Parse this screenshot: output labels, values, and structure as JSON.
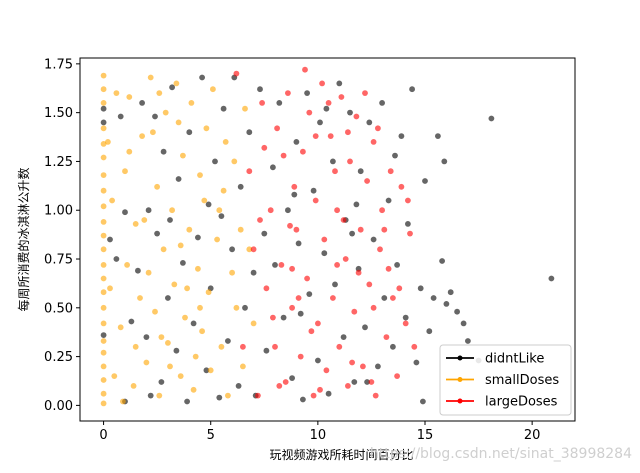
{
  "chart_data": {
    "type": "scatter",
    "title": "",
    "xlabel": "玩视频游戏所耗时间百分比",
    "ylabel": "每周所消费的冰淇淋公升数",
    "xlim": [
      -1.1,
      22.0
    ],
    "ylim": [
      -0.08,
      1.78
    ],
    "x_ticks": [
      0,
      5,
      10,
      15,
      20
    ],
    "y_ticks": [
      0.0,
      0.25,
      0.5,
      0.75,
      1.0,
      1.25,
      1.5,
      1.75
    ],
    "x_tick_labels": [
      "0",
      "5",
      "10",
      "15",
      "20"
    ],
    "y_tick_labels": [
      "0.00",
      "0.25",
      "0.50",
      "0.75",
      "1.00",
      "1.25",
      "1.50",
      "1.75"
    ],
    "grid": false,
    "legend_position": "bottom-right",
    "series": [
      {
        "name": "didntLike",
        "color": "#000000",
        "points": [
          [
            0.0,
            1.52
          ],
          [
            0.0,
            1.45
          ],
          [
            0.0,
            0.36
          ],
          [
            0.3,
            0.85
          ],
          [
            0.6,
            0.75
          ],
          [
            0.8,
            1.48
          ],
          [
            1.0,
            0.99
          ],
          [
            1.0,
            0.02
          ],
          [
            1.3,
            0.43
          ],
          [
            1.6,
            0.69
          ],
          [
            1.8,
            1.55
          ],
          [
            2.0,
            0.35
          ],
          [
            2.1,
            1.0
          ],
          [
            2.2,
            0.05
          ],
          [
            2.4,
            1.48
          ],
          [
            2.5,
            0.88
          ],
          [
            2.7,
            0.12
          ],
          [
            2.8,
            1.3
          ],
          [
            3.0,
            0.55
          ],
          [
            3.1,
            0.95
          ],
          [
            3.2,
            1.63
          ],
          [
            3.4,
            0.28
          ],
          [
            3.5,
            1.16
          ],
          [
            3.7,
            0.73
          ],
          [
            3.9,
            0.02
          ],
          [
            4.0,
            1.4
          ],
          [
            4.2,
            0.42
          ],
          [
            4.4,
            0.86
          ],
          [
            4.6,
            1.68
          ],
          [
            4.8,
            0.18
          ],
          [
            4.9,
            1.03
          ],
          [
            5.0,
            0.6
          ],
          [
            5.2,
            1.25
          ],
          [
            5.4,
            0.04
          ],
          [
            5.5,
            0.97
          ],
          [
            5.6,
            1.52
          ],
          [
            5.8,
            0.33
          ],
          [
            6.0,
            0.8
          ],
          [
            6.1,
            1.68
          ],
          [
            6.3,
            0.1
          ],
          [
            6.4,
            1.12
          ],
          [
            6.6,
            0.5
          ],
          [
            6.8,
            1.4
          ],
          [
            7.0,
            0.68
          ],
          [
            7.1,
            0.05
          ],
          [
            7.3,
            1.62
          ],
          [
            7.5,
            0.88
          ],
          [
            7.6,
            0.28
          ],
          [
            7.9,
            1.22
          ],
          [
            8.0,
            0.72
          ],
          [
            8.2,
            1.55
          ],
          [
            8.4,
            0.45
          ],
          [
            8.6,
            1.0
          ],
          [
            8.8,
            0.14
          ],
          [
            9.0,
            1.35
          ],
          [
            9.1,
            0.83
          ],
          [
            9.3,
            0.03
          ],
          [
            9.5,
            1.6
          ],
          [
            9.6,
            0.57
          ],
          [
            9.8,
            1.1
          ],
          [
            10.0,
            0.23
          ],
          [
            10.1,
            1.45
          ],
          [
            10.3,
            0.78
          ],
          [
            10.5,
            0.06
          ],
          [
            10.7,
            1.25
          ],
          [
            10.8,
            0.62
          ],
          [
            11.0,
            1.65
          ],
          [
            11.2,
            0.35
          ],
          [
            11.3,
            0.95
          ],
          [
            11.5,
            1.5
          ],
          [
            11.7,
            0.12
          ],
          [
            11.9,
            0.7
          ],
          [
            12.0,
            1.2
          ],
          [
            12.2,
            0.4
          ],
          [
            12.4,
            1.45
          ],
          [
            12.6,
            0.85
          ],
          [
            12.8,
            0.2
          ],
          [
            13.0,
            1.55
          ],
          [
            13.1,
            0.55
          ],
          [
            13.3,
            1.05
          ],
          [
            13.5,
            0.3
          ],
          [
            13.7,
            0.72
          ],
          [
            13.9,
            1.38
          ],
          [
            14.1,
            0.45
          ],
          [
            14.2,
            0.93
          ],
          [
            14.4,
            1.62
          ],
          [
            14.6,
            0.22
          ],
          [
            14.8,
            0.6
          ],
          [
            15.0,
            1.15
          ],
          [
            15.2,
            0.38
          ],
          [
            15.4,
            0.55
          ],
          [
            15.6,
            1.38
          ],
          [
            15.8,
            0.74
          ],
          [
            15.9,
            1.25
          ],
          [
            16.0,
            0.52
          ],
          [
            16.2,
            0.58
          ],
          [
            16.5,
            0.48
          ],
          [
            16.8,
            0.42
          ],
          [
            17.0,
            0.33
          ],
          [
            17.5,
            0.23
          ],
          [
            18.1,
            1.47
          ],
          [
            20.9,
            0.65
          ],
          [
            11.8,
            1.03
          ],
          [
            12.3,
            0.12
          ],
          [
            9.2,
            0.47
          ],
          [
            10.4,
            1.52
          ],
          [
            11.6,
            0.88
          ],
          [
            8.9,
            1.08
          ],
          [
            13.6,
            1.28
          ],
          [
            14.9,
            0.02
          ]
        ]
      },
      {
        "name": "smallDoses",
        "color": "#FFA500",
        "points": [
          [
            0.0,
            1.69
          ],
          [
            0.0,
            1.62
          ],
          [
            0.0,
            1.55
          ],
          [
            0.0,
            1.42
          ],
          [
            0.0,
            1.34
          ],
          [
            0.0,
            1.27
          ],
          [
            0.0,
            1.18
          ],
          [
            0.0,
            1.1
          ],
          [
            0.0,
            1.02
          ],
          [
            0.0,
            0.94
          ],
          [
            0.0,
            0.87
          ],
          [
            0.0,
            0.8
          ],
          [
            0.0,
            0.72
          ],
          [
            0.0,
            0.65
          ],
          [
            0.0,
            0.58
          ],
          [
            0.0,
            0.5
          ],
          [
            0.0,
            0.42
          ],
          [
            0.0,
            0.33
          ],
          [
            0.0,
            0.27
          ],
          [
            0.0,
            0.2
          ],
          [
            0.0,
            0.13
          ],
          [
            0.0,
            0.06
          ],
          [
            0.0,
            0.01
          ],
          [
            0.2,
            1.35
          ],
          [
            0.3,
            0.6
          ],
          [
            0.4,
            1.05
          ],
          [
            0.5,
            0.15
          ],
          [
            0.6,
            1.6
          ],
          [
            0.8,
            0.4
          ],
          [
            1.0,
            1.2
          ],
          [
            1.1,
            0.72
          ],
          [
            1.2,
            1.58
          ],
          [
            1.4,
            0.1
          ],
          [
            1.5,
            0.93
          ],
          [
            1.7,
            0.55
          ],
          [
            1.8,
            1.38
          ],
          [
            2.0,
            0.22
          ],
          [
            2.1,
            0.68
          ],
          [
            2.2,
            1.68
          ],
          [
            2.4,
            0.48
          ],
          [
            2.5,
            1.12
          ],
          [
            2.6,
            0.05
          ],
          [
            2.8,
            0.8
          ],
          [
            2.9,
            1.5
          ],
          [
            3.0,
            0.32
          ],
          [
            3.2,
            1.0
          ],
          [
            3.3,
            0.62
          ],
          [
            3.4,
            1.65
          ],
          [
            3.6,
            0.15
          ],
          [
            3.7,
            1.28
          ],
          [
            3.8,
            0.45
          ],
          [
            4.0,
            0.9
          ],
          [
            4.1,
            1.55
          ],
          [
            4.2,
            0.08
          ],
          [
            4.4,
            0.7
          ],
          [
            4.5,
            1.18
          ],
          [
            4.6,
            0.38
          ],
          [
            4.8,
            1.42
          ],
          [
            4.9,
            0.58
          ],
          [
            5.0,
            0.18
          ],
          [
            5.1,
            1.62
          ],
          [
            5.3,
            0.85
          ],
          [
            5.4,
            1.0
          ],
          [
            5.5,
            0.3
          ],
          [
            5.7,
            1.35
          ],
          [
            5.8,
            0.05
          ],
          [
            6.0,
            0.68
          ],
          [
            6.1,
            1.25
          ],
          [
            6.2,
            0.5
          ],
          [
            6.4,
            0.9
          ],
          [
            6.5,
            0.2
          ],
          [
            6.6,
            1.52
          ],
          [
            6.8,
            0.8
          ],
          [
            7.0,
            0.42
          ],
          [
            1.5,
            0.3
          ],
          [
            2.3,
            1.4
          ],
          [
            3.1,
            0.2
          ],
          [
            3.9,
            0.6
          ],
          [
            4.7,
            1.05
          ],
          [
            1.9,
            0.95
          ],
          [
            2.7,
            0.35
          ],
          [
            3.5,
            1.45
          ],
          [
            4.3,
            0.25
          ],
          [
            0.9,
            0.02
          ],
          [
            1.2,
            1.3
          ],
          [
            2.6,
            1.6
          ],
          [
            3.6,
            0.82
          ],
          [
            4.5,
            0.5
          ],
          [
            5.6,
            1.1
          ]
        ]
      },
      {
        "name": "largeDoses",
        "color": "#FF0000",
        "points": [
          [
            6.2,
            1.7
          ],
          [
            6.5,
            0.3
          ],
          [
            6.8,
            1.2
          ],
          [
            7.0,
            0.8
          ],
          [
            7.2,
            0.05
          ],
          [
            7.4,
            1.55
          ],
          [
            7.6,
            0.6
          ],
          [
            7.8,
            1.0
          ],
          [
            8.0,
            0.3
          ],
          [
            8.1,
            1.42
          ],
          [
            8.3,
            0.72
          ],
          [
            8.5,
            0.12
          ],
          [
            8.6,
            1.6
          ],
          [
            8.8,
            0.5
          ],
          [
            8.9,
            1.12
          ],
          [
            9.0,
            0.9
          ],
          [
            9.2,
            0.25
          ],
          [
            9.3,
            1.3
          ],
          [
            9.5,
            0.65
          ],
          [
            9.6,
            1.5
          ],
          [
            9.8,
            0.05
          ],
          [
            9.9,
            1.05
          ],
          [
            10.0,
            0.42
          ],
          [
            10.2,
            1.65
          ],
          [
            10.3,
            0.85
          ],
          [
            10.4,
            0.18
          ],
          [
            10.6,
            1.38
          ],
          [
            10.7,
            0.55
          ],
          [
            10.9,
            1.0
          ],
          [
            11.0,
            0.3
          ],
          [
            11.1,
            1.58
          ],
          [
            11.3,
            0.75
          ],
          [
            11.4,
            0.1
          ],
          [
            11.5,
            1.25
          ],
          [
            11.7,
            0.48
          ],
          [
            11.8,
            1.48
          ],
          [
            12.0,
            0.9
          ],
          [
            12.1,
            0.2
          ],
          [
            12.3,
            1.15
          ],
          [
            12.4,
            0.62
          ],
          [
            12.6,
            1.35
          ],
          [
            12.7,
            0.05
          ],
          [
            12.9,
            0.8
          ],
          [
            13.0,
            1.0
          ],
          [
            13.2,
            0.35
          ],
          [
            13.4,
            1.2
          ],
          [
            13.5,
            0.55
          ],
          [
            13.7,
            0.15
          ],
          [
            13.9,
            1.12
          ],
          [
            14.1,
            0.42
          ],
          [
            14.3,
            0.88
          ],
          [
            14.5,
            0.3
          ],
          [
            7.5,
            1.32
          ],
          [
            8.7,
            0.92
          ],
          [
            9.7,
            0.38
          ],
          [
            10.8,
            1.2
          ],
          [
            11.9,
            0.68
          ],
          [
            12.8,
            1.42
          ],
          [
            10.1,
            0.08
          ],
          [
            9.4,
            1.72
          ],
          [
            8.2,
            0.1
          ],
          [
            11.2,
            0.95
          ],
          [
            12.5,
            0.12
          ],
          [
            13.3,
            0.7
          ],
          [
            10.5,
            1.55
          ],
          [
            9.1,
            0.55
          ],
          [
            7.9,
            0.45
          ],
          [
            8.4,
            1.28
          ],
          [
            11.6,
            0.22
          ],
          [
            12.2,
            1.6
          ],
          [
            13.1,
            0.9
          ],
          [
            10.9,
            0.72
          ],
          [
            9.9,
            1.38
          ],
          [
            8.8,
            0.7
          ],
          [
            7.3,
            0.95
          ],
          [
            11.4,
            1.4
          ],
          [
            12.6,
            0.5
          ],
          [
            13.8,
            0.6
          ],
          [
            14.2,
            1.05
          ]
        ]
      }
    ]
  },
  "legend": {
    "entries": [
      {
        "label": "didntLike",
        "color": "#000000"
      },
      {
        "label": "smallDoses",
        "color": "#FFA500"
      },
      {
        "label": "largeDoses",
        "color": "#FF0000"
      }
    ]
  },
  "watermark": "https://blog.csdn.net/sinat_38998284"
}
